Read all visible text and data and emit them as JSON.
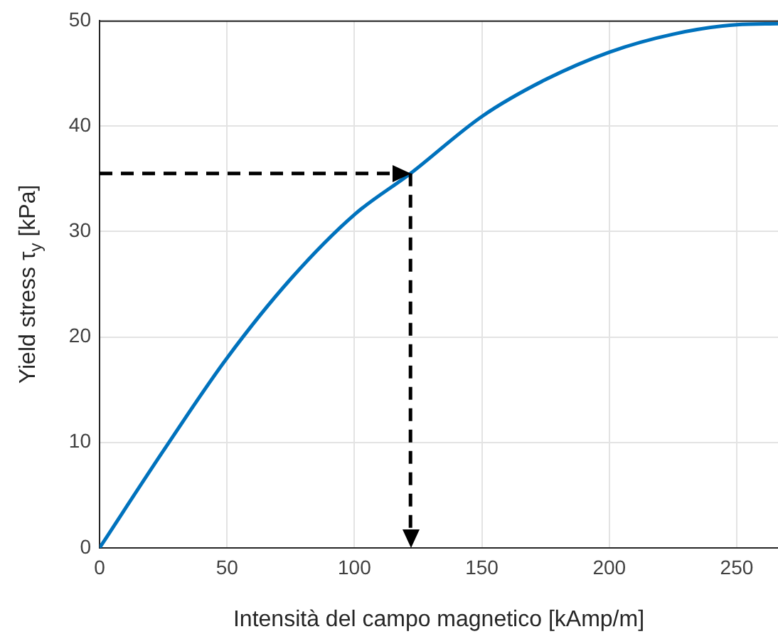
{
  "chart_data": {
    "type": "line",
    "xlabel": "Intensità del campo magnetico [kAmp/m]",
    "ylabel": "Yield stress τ$_{y}$ [kPa]",
    "series": [
      {
        "color": "#0072bd",
        "x": [
          0,
          25,
          50,
          75,
          100,
          122,
          150,
          175,
          200,
          225,
          250,
          266.2
        ],
        "values": [
          0,
          9.2,
          18,
          25.5,
          31.6,
          35.5,
          40.9,
          44.4,
          47,
          48.7,
          49.6,
          49.7
        ]
      }
    ],
    "xlim": [
      0,
      266.2
    ],
    "xticks": [
      0,
      50,
      100,
      150,
      200,
      250
    ],
    "ylim": [
      0,
      50
    ],
    "yticks": [
      0,
      10,
      20,
      30,
      40,
      50
    ],
    "ref_lines": [
      {
        "axis": "y",
        "value": 35.5,
        "color": "#000000",
        "line_style": "dashed"
      },
      {
        "axis": "x",
        "value": 122,
        "color": "#000000",
        "line_style": "dashed"
      }
    ],
    "grid": true,
    "legend": false,
    "marker": "none",
    "line_style": "solid"
  }
}
